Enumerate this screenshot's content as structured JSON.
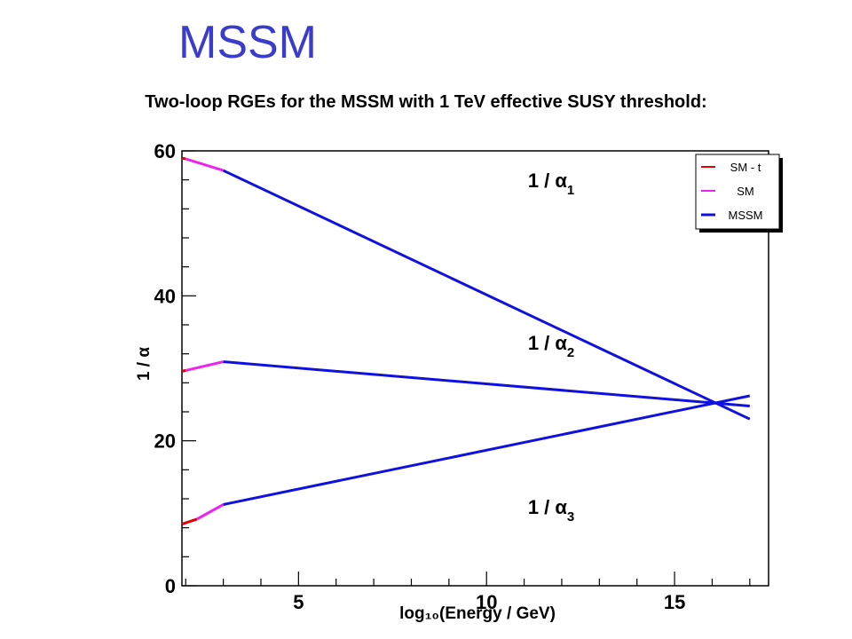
{
  "page": {
    "title": "MSSM",
    "subtitle": "Two-loop RGEs for the MSSM with 1 TeV effective SUSY threshold:"
  },
  "colors": {
    "title": "#3c3ccc",
    "SM - t": "#e00000",
    "SM": "#ee22ee",
    "MSSM": "#1010e0"
  },
  "chart_data": {
    "type": "line",
    "xlabel": "log₁₀(Energy / GeV)",
    "ylabel": "1 / α",
    "xlim": [
      1.9,
      17.5
    ],
    "ylim": [
      0,
      60
    ],
    "xticks": [
      5,
      10,
      15
    ],
    "yticks": [
      0,
      20,
      40,
      60
    ],
    "grid": false,
    "legend": {
      "position": "top-right",
      "entries": [
        "SM - t",
        "SM",
        "MSSM"
      ]
    },
    "curve_labels": [
      {
        "main": "1 / α",
        "sub": "1",
        "at": [
          11.1,
          55.0
        ]
      },
      {
        "main": "1 / α",
        "sub": "2",
        "at": [
          11.1,
          32.6
        ]
      },
      {
        "main": "1 / α",
        "sub": "3",
        "at": [
          11.1,
          9.9
        ]
      }
    ],
    "series": [
      {
        "name": "SM - t",
        "curve": "1 / α1",
        "x": [
          1.9,
          2.0
        ],
        "y": [
          59.0,
          58.9
        ]
      },
      {
        "name": "SM",
        "curve": "1 / α1",
        "x": [
          2.0,
          3.0
        ],
        "y": [
          58.9,
          57.3
        ]
      },
      {
        "name": "MSSM",
        "curve": "1 / α1",
        "x": [
          3.0,
          17.0
        ],
        "y": [
          57.3,
          23.0
        ]
      },
      {
        "name": "SM - t",
        "curve": "1 / α2",
        "x": [
          1.9,
          2.0
        ],
        "y": [
          29.6,
          29.7
        ]
      },
      {
        "name": "SM",
        "curve": "1 / α2",
        "x": [
          2.0,
          3.0
        ],
        "y": [
          29.7,
          30.9
        ]
      },
      {
        "name": "MSSM",
        "curve": "1 / α2",
        "x": [
          3.0,
          17.0
        ],
        "y": [
          30.9,
          24.8
        ]
      },
      {
        "name": "SM - t",
        "curve": "1 / α3",
        "x": [
          1.9,
          2.3
        ],
        "y": [
          8.5,
          9.2
        ]
      },
      {
        "name": "SM",
        "curve": "1 / α3",
        "x": [
          2.3,
          3.0
        ],
        "y": [
          9.2,
          11.2
        ]
      },
      {
        "name": "MSSM",
        "curve": "1 / α3",
        "x": [
          3.0,
          17.0
        ],
        "y": [
          11.2,
          26.2
        ]
      }
    ]
  }
}
